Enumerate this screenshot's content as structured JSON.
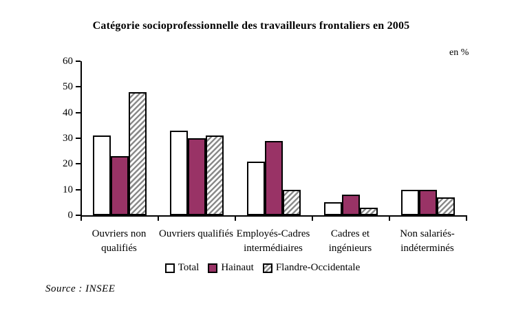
{
  "title": "Catégorie socioprofessionnelle des travailleurs frontaliers en 2005",
  "unit_label": "en %",
  "source": "Source : INSEE",
  "colors": {
    "total_fill": "#ffffff",
    "hainaut_fill": "#993366",
    "hatch_stripe": "#8a8a8a",
    "bar_border": "#000000"
  },
  "chart_data": {
    "type": "bar",
    "title": "Catégorie socioprofessionnelle des travailleurs frontaliers en 2005",
    "xlabel": "",
    "ylabel": "en %",
    "ylim": [
      0,
      60
    ],
    "yticks": [
      0,
      10,
      20,
      30,
      40,
      50,
      60
    ],
    "grid": false,
    "legend_position": "bottom",
    "categories": [
      "Ouvriers non qualifiés",
      "Ouvriers qualifiés",
      "Employés-Cadres intermédiaires",
      "Cadres et ingénieurs",
      "Non salariés-indéterminés"
    ],
    "category_label_lines": [
      [
        "Ouvriers non",
        "qualifiés"
      ],
      [
        "Ouvriers qualifiés"
      ],
      [
        "Employés-Cadres",
        "intermédiaires"
      ],
      [
        "Cadres et",
        "ingénieurs"
      ],
      [
        "Non salariés-",
        "indéterminés"
      ]
    ],
    "series": [
      {
        "name": "Total",
        "style": "white",
        "values": [
          31,
          33,
          21,
          5,
          10
        ]
      },
      {
        "name": "Hainaut",
        "style": "solid-plum",
        "values": [
          23,
          30,
          29,
          8,
          10
        ]
      },
      {
        "name": "Flandre-Occidentale",
        "style": "hatched",
        "values": [
          48,
          31,
          10,
          3,
          7
        ]
      }
    ]
  }
}
